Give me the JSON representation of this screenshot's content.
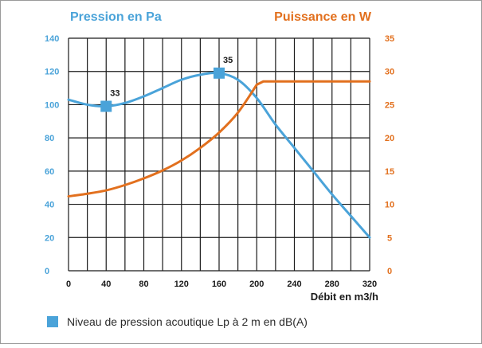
{
  "chart_data": {
    "type": "line",
    "left_axis_title": "Pression en Pa",
    "right_axis_title": "Puissance en W",
    "xlabel": "Débit en m3/h",
    "xlim": [
      0,
      320
    ],
    "x_ticks": [
      "0",
      "40",
      "80",
      "120",
      "160",
      "200",
      "240",
      "280",
      "320"
    ],
    "ylim_left": [
      0,
      140
    ],
    "y_left_ticks": [
      "0",
      "20",
      "40",
      "60",
      "80",
      "100",
      "120",
      "140"
    ],
    "ylim_right": [
      0,
      35
    ],
    "y_right_ticks": [
      "0",
      "5",
      "10",
      "15",
      "20",
      "25",
      "30",
      "35"
    ],
    "grid": true,
    "series": [
      {
        "name": "Pression en Pa",
        "axis": "left",
        "color": "#4aa3d9",
        "x": [
          0,
          20,
          40,
          60,
          80,
          100,
          120,
          140,
          160,
          180,
          200,
          220,
          240,
          260,
          280,
          300,
          320
        ],
        "y": [
          103,
          100,
          99,
          101,
          105,
          110,
          115,
          118,
          119,
          115,
          104,
          88,
          74,
          60,
          46,
          33,
          20
        ]
      },
      {
        "name": "Puissance en W",
        "axis": "right",
        "color": "#e2701e",
        "x": [
          0,
          20,
          40,
          60,
          80,
          100,
          120,
          140,
          160,
          180,
          200,
          207,
          240,
          280,
          320
        ],
        "y": [
          11.2,
          11.6,
          12.1,
          12.9,
          13.9,
          15.1,
          16.6,
          18.5,
          20.8,
          23.8,
          28.0,
          28.5,
          28.5,
          28.5,
          28.5
        ]
      }
    ],
    "markers": [
      {
        "x": 40,
        "y": 99,
        "label": "33"
      },
      {
        "x": 160,
        "y": 119,
        "label": "35"
      }
    ],
    "legend": {
      "label": "Niveau de pression acoutique Lp à 2 m en dB(A)",
      "color": "#4aa3d9",
      "placement": "bottom-left"
    },
    "colors": {
      "left_axis": "#4aa3d9",
      "right_axis": "#e2701e",
      "grid": "#1a1a1a",
      "tick_label": "#1a1a1a",
      "frame": "#999999"
    }
  }
}
